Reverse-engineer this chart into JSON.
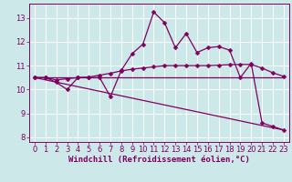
{
  "xlabel": "Windchill (Refroidissement éolien,°C)",
  "bg_color": "#cce8e8",
  "grid_color": "#ffffff",
  "line_color": "#800060",
  "xlim": [
    -0.5,
    23.5
  ],
  "ylim": [
    7.8,
    13.6
  ],
  "xticks": [
    0,
    1,
    2,
    3,
    4,
    5,
    6,
    7,
    8,
    9,
    10,
    11,
    12,
    13,
    14,
    15,
    16,
    17,
    18,
    19,
    20,
    21,
    22,
    23
  ],
  "yticks": [
    8,
    9,
    10,
    11,
    12,
    13
  ],
  "series1_x": [
    0,
    1,
    2,
    3,
    4,
    5,
    6,
    7,
    8,
    9,
    10,
    11,
    12,
    13,
    14,
    15,
    16,
    17,
    18,
    19,
    20,
    21,
    22,
    23
  ],
  "series1_y": [
    10.5,
    10.5,
    10.3,
    10.0,
    10.5,
    10.5,
    10.5,
    9.7,
    10.8,
    11.5,
    11.9,
    13.25,
    12.8,
    11.75,
    12.35,
    11.55,
    11.75,
    11.8,
    11.65,
    10.5,
    11.1,
    8.6,
    8.45,
    8.3
  ],
  "series2_x": [
    0,
    1,
    2,
    3,
    4,
    5,
    6,
    7,
    8,
    9,
    10,
    11,
    12,
    13,
    14,
    15,
    16,
    17,
    18,
    19,
    20,
    21,
    22,
    23
  ],
  "series2_y": [
    10.5,
    10.5,
    10.4,
    10.45,
    10.5,
    10.52,
    10.6,
    10.68,
    10.78,
    10.85,
    10.9,
    10.95,
    11.0,
    11.0,
    11.0,
    11.0,
    11.0,
    11.02,
    11.04,
    11.05,
    11.05,
    10.9,
    10.7,
    10.55
  ],
  "series3_x": [
    0,
    23
  ],
  "series3_y": [
    10.5,
    8.3
  ],
  "series4_x": [
    0,
    23
  ],
  "series4_y": [
    10.5,
    10.5
  ],
  "markersize": 2.5,
  "linewidth": 0.9,
  "xlabel_fontsize": 6.5,
  "tick_fontsize": 6.0
}
